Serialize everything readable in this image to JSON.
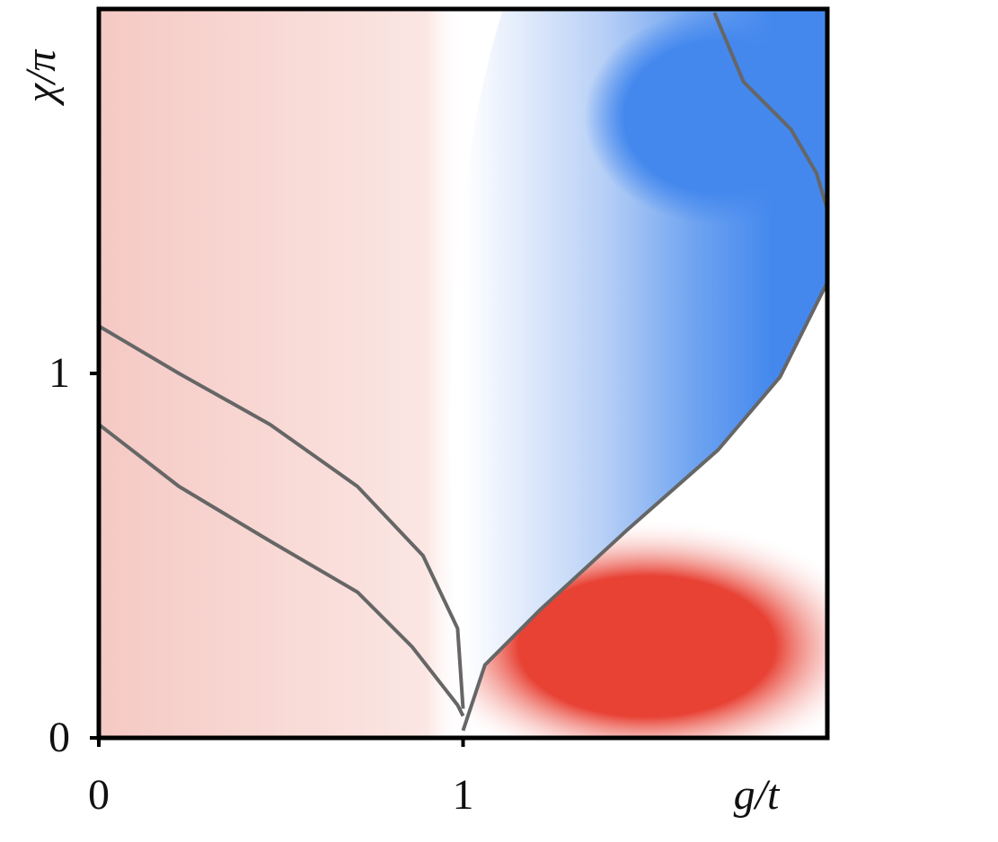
{
  "chart_data": {
    "type": "heatmap",
    "x_label": "g/t",
    "y_label": "χ/π",
    "xlim": [
      0,
      2
    ],
    "ylim": [
      0,
      2
    ],
    "xticks": [
      0,
      1
    ],
    "yticks": [
      0,
      1
    ],
    "contour_color": "#666666",
    "contours": [
      {
        "x": [
          0,
          0.22,
          0.47,
          0.71,
          0.89,
          0.985,
          1.0
        ],
        "y": [
          1.13,
          1.0,
          0.86,
          0.69,
          0.5,
          0.3,
          0.08
        ]
      },
      {
        "x": [
          0,
          0.22,
          0.47,
          0.71,
          0.86,
          0.985,
          1.0
        ],
        "y": [
          0.86,
          0.69,
          0.54,
          0.4,
          0.25,
          0.09,
          0.06
        ]
      },
      {
        "x": [
          1.0,
          1.06,
          1.21,
          1.45,
          1.7,
          1.87,
          2.0
        ],
        "y": [
          0.02,
          0.2,
          0.35,
          0.57,
          0.79,
          0.99,
          1.25
        ]
      },
      {
        "x": [
          1.69,
          1.77,
          1.9,
          1.97,
          2.0
        ],
        "y": [
          1.99,
          1.8,
          1.67,
          1.55,
          1.45
        ]
      }
    ]
  }
}
